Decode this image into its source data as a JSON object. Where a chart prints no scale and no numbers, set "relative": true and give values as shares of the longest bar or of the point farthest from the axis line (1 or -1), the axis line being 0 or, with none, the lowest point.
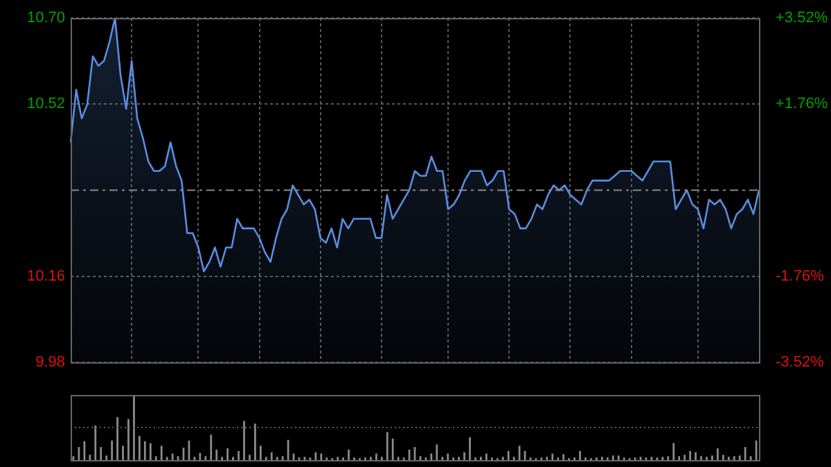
{
  "chart_data": [
    {
      "type": "area",
      "color": "#5a8ee0",
      "categories": [
        null,
        null,
        null,
        null,
        null,
        null,
        null,
        null,
        null,
        null,
        null,
        null,
        null,
        null,
        null,
        null,
        null,
        null,
        null,
        null,
        null,
        null,
        null,
        null,
        null,
        null,
        null,
        null,
        null,
        null,
        null,
        null,
        null,
        null,
        null,
        null,
        null,
        null,
        null,
        null,
        null,
        null,
        null,
        null,
        null,
        null,
        null,
        null,
        null,
        null,
        null,
        null,
        null,
        null,
        null,
        null,
        null,
        null,
        null,
        null,
        null,
        null,
        null,
        null,
        null,
        null,
        null,
        null,
        null,
        null,
        null,
        null,
        null,
        null,
        null,
        null,
        null,
        null,
        null,
        null,
        null,
        null,
        null,
        null,
        null,
        null,
        null,
        null,
        null,
        null,
        null,
        null,
        null,
        null,
        null,
        null,
        null,
        null,
        null,
        null,
        null,
        null,
        null,
        null,
        null,
        null,
        null,
        null,
        null,
        null,
        null,
        null,
        null,
        null,
        null,
        null,
        null,
        null,
        null,
        null,
        null,
        null,
        null,
        null,
        null
      ],
      "values": [
        10.44,
        10.55,
        10.49,
        10.52,
        10.62,
        10.6,
        10.61,
        10.65,
        10.7,
        10.58,
        10.51,
        10.61,
        10.49,
        10.45,
        10.4,
        10.38,
        10.38,
        10.39,
        10.44,
        10.39,
        10.36,
        10.25,
        10.25,
        10.22,
        10.17,
        10.19,
        10.22,
        10.18,
        10.22,
        10.22,
        10.28,
        10.26,
        10.26,
        10.26,
        10.24,
        10.21,
        10.19,
        10.24,
        10.28,
        10.3,
        10.35,
        10.33,
        10.31,
        10.32,
        10.3,
        10.24,
        10.23,
        10.26,
        10.22,
        10.28,
        10.26,
        10.28,
        10.28,
        10.28,
        10.28,
        10.24,
        10.24,
        10.33,
        10.28,
        10.3,
        10.32,
        10.34,
        10.38,
        10.37,
        10.37,
        10.41,
        10.38,
        10.38,
        10.3,
        10.31,
        10.33,
        10.36,
        10.38,
        10.38,
        10.38,
        10.35,
        10.36,
        10.38,
        10.38,
        10.3,
        10.29,
        10.26,
        10.26,
        10.28,
        10.31,
        10.3,
        10.33,
        10.35,
        10.34,
        10.35,
        10.33,
        10.32,
        10.31,
        10.34,
        10.36,
        10.36,
        10.36,
        10.36,
        10.37,
        10.38,
        10.38,
        10.38,
        10.37,
        10.36,
        10.38,
        10.4,
        10.4,
        10.4,
        10.4,
        10.3,
        10.32,
        10.34,
        10.31,
        10.3,
        10.26,
        10.32,
        10.31,
        10.32,
        10.3,
        10.26,
        10.29,
        10.3,
        10.32,
        10.29,
        10.34
      ],
      "ylim": [
        9.98,
        10.7
      ],
      "yticks": [
        {
          "value": 9.98,
          "label": "9.98"
        },
        {
          "value": 10.16,
          "label": "10.16"
        },
        {
          "value": 10.52,
          "label": "10.52"
        },
        {
          "value": 10.7,
          "label": "10.70"
        }
      ],
      "y2lim": [
        -3.52,
        3.52
      ],
      "y2ticks": [
        {
          "value": -3.52,
          "label": "-3.52%"
        },
        {
          "value": -1.76,
          "label": "-1.76%"
        },
        {
          "value": 1.76,
          "label": "+1.76%"
        },
        {
          "value": 3.52,
          "label": "+3.52%"
        }
      ],
      "ref_lines": [
        {
          "axis": "y",
          "value": 10.34,
          "color": "#8a8a8a",
          "line_style": "dashed"
        }
      ],
      "grid": true,
      "tick_labels": "y"
    },
    {
      "type": "bar",
      "relative": true,
      "color": "#8c8c8c",
      "tick_labels": false,
      "ref_lines": [
        {
          "axis": "y",
          "value": 0.5,
          "color": "#5a5a5a",
          "line_style": "dotted"
        }
      ],
      "categories": [
        null,
        null,
        null,
        null,
        null,
        null,
        null,
        null,
        null,
        null,
        null,
        null,
        null,
        null,
        null,
        null,
        null,
        null,
        null,
        null,
        null,
        null,
        null,
        null,
        null,
        null,
        null,
        null,
        null,
        null,
        null,
        null,
        null,
        null,
        null,
        null,
        null,
        null,
        null,
        null,
        null,
        null,
        null,
        null,
        null,
        null,
        null,
        null,
        null,
        null,
        null,
        null,
        null,
        null,
        null,
        null,
        null,
        null,
        null,
        null,
        null,
        null,
        null,
        null,
        null,
        null,
        null,
        null,
        null,
        null,
        null,
        null,
        null,
        null,
        null,
        null,
        null,
        null,
        null,
        null,
        null,
        null,
        null,
        null,
        null,
        null,
        null,
        null,
        null,
        null,
        null,
        null,
        null,
        null,
        null,
        null,
        null,
        null,
        null,
        null,
        null,
        null,
        null,
        null,
        null,
        null,
        null,
        null,
        null,
        null,
        null,
        null,
        null,
        null,
        null,
        null,
        null,
        null,
        null,
        null,
        null,
        null,
        null,
        null,
        null
      ],
      "values": [
        0.06,
        0.2,
        0.29,
        0.08,
        0.53,
        0.2,
        0.07,
        0.3,
        0.66,
        0.22,
        0.63,
        1.0,
        0.37,
        0.29,
        0.26,
        0.06,
        0.22,
        0.05,
        0.1,
        0.06,
        0.19,
        0.3,
        0.05,
        0.11,
        0.06,
        0.39,
        0.16,
        0.05,
        0.18,
        0.05,
        0.14,
        0.6,
        0.08,
        0.56,
        0.22,
        0.05,
        0.12,
        0.05,
        0.06,
        0.31,
        0.1,
        0.04,
        0.05,
        0.04,
        0.12,
        0.1,
        0.04,
        0.03,
        0.05,
        0.04,
        0.16,
        0.04,
        0.03,
        0.04,
        0.05,
        0.1,
        0.05,
        0.43,
        0.33,
        0.05,
        0.04,
        0.16,
        0.2,
        0.06,
        0.04,
        0.1,
        0.24,
        0.05,
        0.1,
        0.04,
        0.05,
        0.12,
        0.35,
        0.04,
        0.05,
        0.1,
        0.04,
        0.03,
        0.05,
        0.14,
        0.05,
        0.22,
        0.14,
        0.04,
        0.03,
        0.04,
        0.05,
        0.1,
        0.04,
        0.09,
        0.03,
        0.04,
        0.14,
        0.04,
        0.03,
        0.04,
        0.05,
        0.04,
        0.07,
        0.07,
        0.04,
        0.03,
        0.04,
        0.05,
        0.04,
        0.05,
        0.04,
        0.05,
        0.06,
        0.26,
        0.06,
        0.08,
        0.14,
        0.12,
        0.06,
        0.05,
        0.07,
        0.18,
        0.08,
        0.05,
        0.06,
        0.07,
        0.2,
        0.06,
        0.3
      ]
    }
  ]
}
